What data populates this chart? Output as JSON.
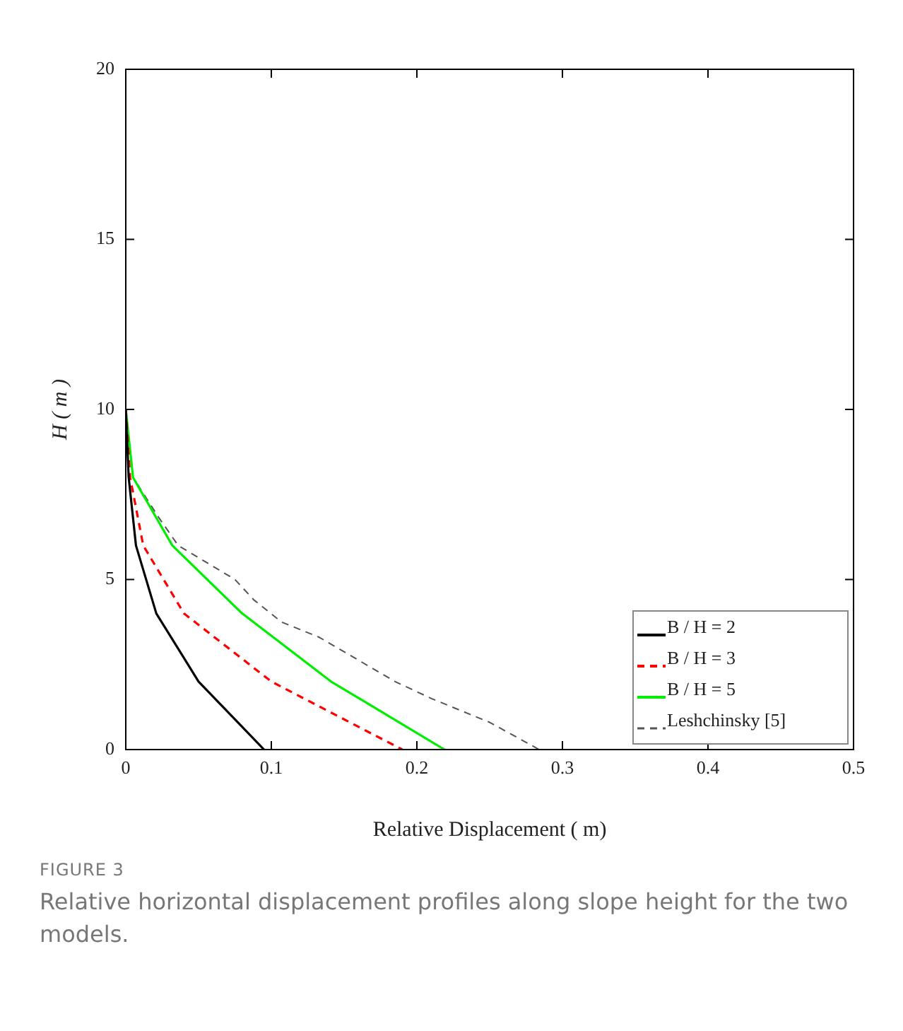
{
  "chart_data": {
    "type": "line",
    "xlabel": "Relative Displacement ( m)",
    "ylabel": "H ( m )",
    "xlim": [
      0,
      0.5
    ],
    "xticks": [
      0,
      0.1,
      0.2,
      0.3,
      0.4,
      0.5
    ],
    "ylim": [
      0,
      20
    ],
    "yticks": [
      0,
      5,
      10,
      15,
      20
    ],
    "grid": false,
    "legend": "bottom right",
    "marker": "none",
    "series": [
      {
        "name": "B / H = 2",
        "color": "#000000",
        "line_style": "solid",
        "x": [
          0,
          0.002,
          0.007,
          0.021,
          0.05,
          0.095
        ],
        "values": [
          10,
          8,
          6,
          4,
          2,
          0
        ]
      },
      {
        "name": "B / H = 3",
        "color": "#ff0000",
        "line_style": "dashed",
        "x": [
          0,
          0.003,
          0.012,
          0.04,
          0.1,
          0.19
        ],
        "values": [
          10,
          8,
          6,
          4,
          2,
          0
        ]
      },
      {
        "name": "B / H = 5",
        "color": "#00ee00",
        "line_style": "solid",
        "x": [
          0,
          0.004,
          0.005,
          0.032,
          0.08,
          0.141,
          0.219
        ],
        "values": [
          10,
          8.4,
          8,
          6,
          4,
          2,
          0
        ]
      },
      {
        "name": "Leshchinsky [5]",
        "color": "#555555",
        "line_style": "dashed",
        "x": [
          0,
          0.005,
          0.023,
          0.036,
          0.075,
          0.088,
          0.107,
          0.133,
          0.185,
          0.21,
          0.25,
          0.284
        ],
        "values": [
          10,
          8,
          6.8,
          6,
          5,
          4.4,
          3.75,
          3.3,
          2,
          1.5,
          0.8,
          0
        ]
      }
    ],
    "annotations": [
      "FIGURE 3",
      "Relative horizontal displacement profiles along slope height for the two models."
    ]
  }
}
